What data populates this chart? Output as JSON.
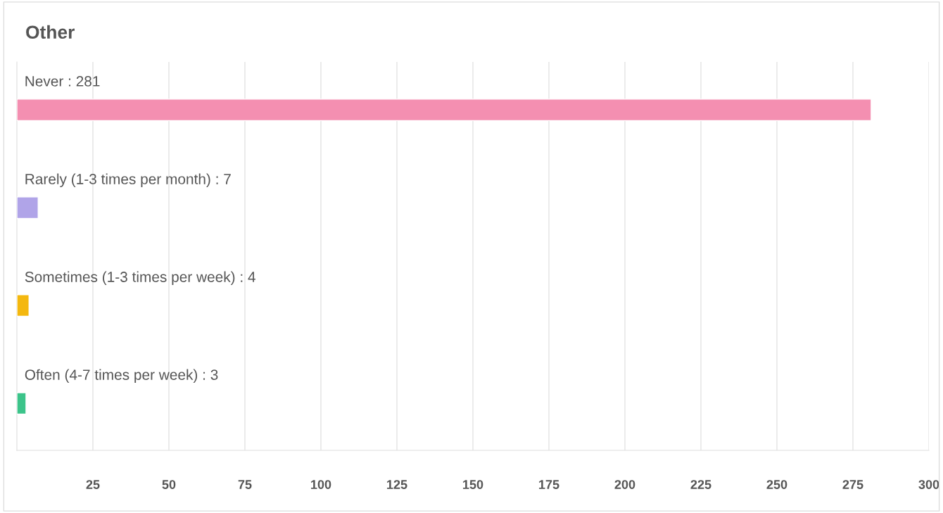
{
  "chart_data": {
    "type": "bar",
    "orientation": "horizontal",
    "title": "Other",
    "categories": [
      "Never : 281",
      "Rarely (1-3 times per month) : 7",
      "Sometimes (1-3 times per week) : 4",
      "Often (4-7 times per week) : 3"
    ],
    "values": [
      281,
      7,
      4,
      3
    ],
    "colors": [
      "#f48fb1",
      "#b0a4e8",
      "#f4b80f",
      "#3cc48a"
    ],
    "xlim": [
      0,
      300
    ],
    "xticks": [
      25,
      50,
      75,
      100,
      125,
      150,
      175,
      200,
      225,
      250,
      275,
      300
    ],
    "grid": "x",
    "legend": false,
    "tick_labels": "x"
  }
}
